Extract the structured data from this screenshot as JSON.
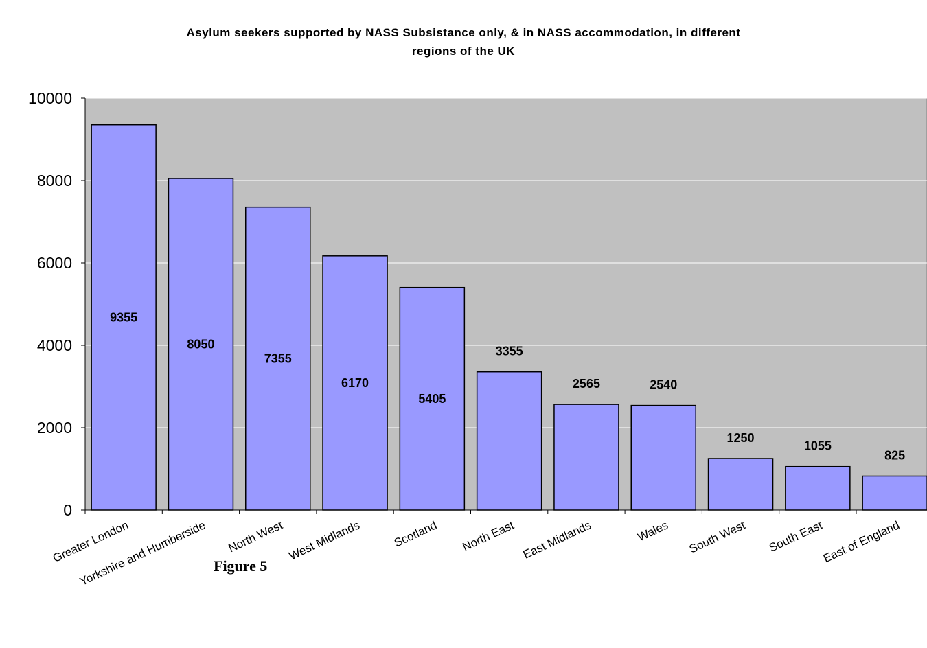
{
  "chart_data": {
    "type": "bar",
    "title": "Asylum seekers supported by NASS Subsistance only, & in NASS accommodation, in different regions of the UK",
    "title_lines": [
      "Asylum seekers supported by NASS Subsistance only, & in NASS accommodation, in different",
      "regions of the UK"
    ],
    "xlabel": "",
    "ylabel": "",
    "ylim": [
      0,
      10000
    ],
    "yticks": [
      0,
      2000,
      4000,
      6000,
      8000,
      10000
    ],
    "grid": true,
    "legend": "none",
    "categories": [
      "Greater London",
      "Yorkshire and Humberside",
      "North West",
      "West Midlands",
      "Scotland",
      "North East",
      "East Midlands",
      "Wales",
      "South West",
      "South East",
      "East of England"
    ],
    "values": [
      9355,
      8050,
      7355,
      6170,
      5405,
      3355,
      2565,
      2540,
      1250,
      1055,
      825
    ],
    "data_labels": [
      "9355",
      "8050",
      "7355",
      "6170",
      "5405",
      "3355",
      "2565",
      "2540",
      "1250",
      "1055",
      "825"
    ],
    "colors": {
      "bar": "#9999ff",
      "plot_background": "#c0c0c0",
      "gridline": "#ffffff",
      "bar_border": "#000000"
    }
  },
  "caption": "Figure 5"
}
